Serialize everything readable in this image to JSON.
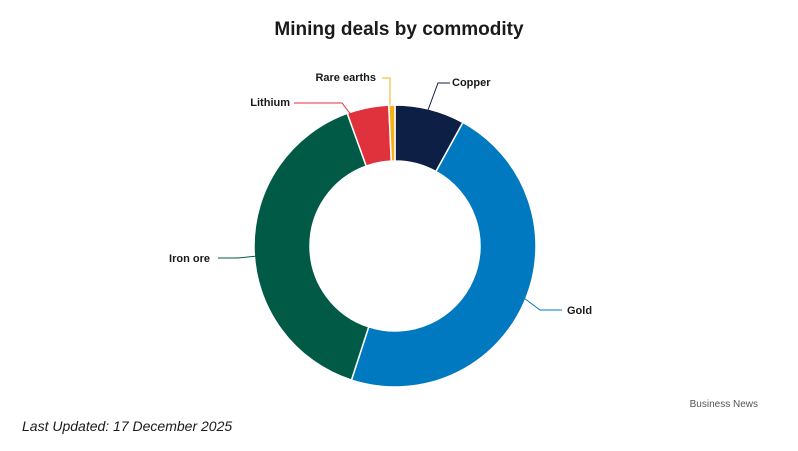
{
  "title": "Mining deals by commodity",
  "source": "Business News",
  "last_updated": "Last Updated: 17 December 2025",
  "chart_data": {
    "type": "pie",
    "donut": true,
    "title": "Mining deals by commodity",
    "categories": [
      "Copper",
      "Gold",
      "Iron ore",
      "Lithium",
      "Rare earths"
    ],
    "values": [
      8.0,
      47.0,
      39.5,
      4.8,
      0.7
    ],
    "colors": [
      "#0e1f45",
      "#0079c1",
      "#005a46",
      "#e0323c",
      "#f2b21a"
    ],
    "legend": "none"
  }
}
